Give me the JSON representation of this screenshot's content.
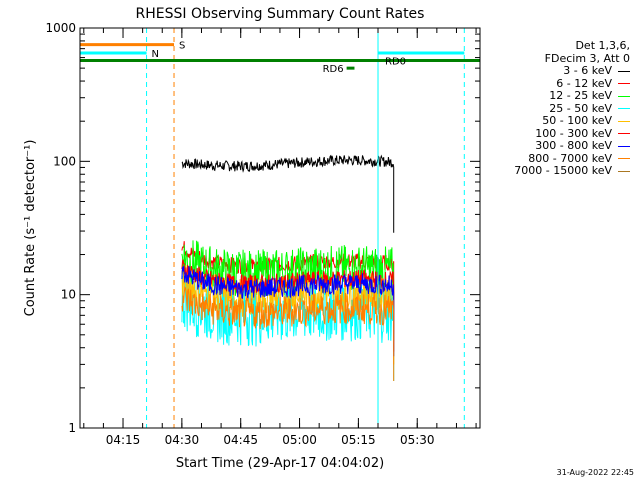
{
  "chart_data": {
    "type": "line",
    "title": "RHESSI Observing Summary Count Rates",
    "xlabel": "Start Time (29-Apr-17 04:04:02)",
    "ylabel": "Count Rate (s⁻¹ detector⁻¹)",
    "yscale": "log",
    "ylim": [
      1,
      1000
    ],
    "xlim": [
      "04:04:02",
      "05:46:00"
    ],
    "x_ticks": [
      "04:15",
      "04:30",
      "04:45",
      "05:00",
      "05:15",
      "05:30"
    ],
    "y_ticks": [
      "1",
      "10",
      "100",
      "1000"
    ],
    "legend_header": [
      "Det 1,3,6,",
      "FDecim 3, Att 0"
    ],
    "series": [
      {
        "name": "3 - 6 keV",
        "color": "#000000",
        "start": "04:30",
        "end": "05:24",
        "level": 97,
        "noise": 0.04,
        "decay": 0
      },
      {
        "name": "6 - 12 keV",
        "color": "#ff0000",
        "start": "04:30",
        "end": "05:24",
        "level": 17,
        "noise": 0.06,
        "decay": 0.35
      },
      {
        "name": "12 - 25 keV",
        "color": "#00ff00",
        "start": "04:30",
        "end": "05:24",
        "level": 15,
        "noise": 0.18,
        "decay": 0.3
      },
      {
        "name": "25 - 50 keV",
        "color": "#00ffff",
        "start": "04:30",
        "end": "05:24",
        "level": 7.5,
        "noise": 0.25,
        "decay": 0.3
      },
      {
        "name": "50 - 100 keV",
        "color": "#ffbf00",
        "start": "04:30",
        "end": "05:24",
        "level": 10,
        "noise": 0.15,
        "decay": 0.25
      },
      {
        "name": "100 - 300 keV",
        "color": "#ff0000",
        "start": "04:30",
        "end": "05:24",
        "level": 12.5,
        "noise": 0.07,
        "decay": 0.3
      },
      {
        "name": "300 - 800 keV",
        "color": "#0000ff",
        "start": "04:30",
        "end": "05:24",
        "level": 11.5,
        "noise": 0.08,
        "decay": 0.3
      },
      {
        "name": "800 - 7000 keV",
        "color": "#ff8000",
        "start": "04:30",
        "end": "05:24",
        "level": 7.5,
        "noise": 0.12,
        "decay": 0.3
      },
      {
        "name": "7000 - 15000 keV",
        "color": "#aa7722",
        "start": "04:30",
        "end": "05:24",
        "level": 0,
        "noise": 0,
        "decay": 0
      }
    ],
    "flag_bars": [
      {
        "label": "S",
        "color": "#ff8000",
        "start": "04:04:02",
        "end": "04:28",
        "y": 750
      },
      {
        "label": "N",
        "color": "#00ffff",
        "start": "04:04:02",
        "end": "04:21",
        "y": 650
      },
      {
        "label": "",
        "color": "#00ffff",
        "start": "05:20",
        "end": "05:42",
        "y": 650
      },
      {
        "label": "RD0",
        "color": "#008000",
        "start": "04:04:02",
        "end": "05:46",
        "y": 570
      },
      {
        "label": "RD6",
        "color": "#008000",
        "start": "05:12",
        "end": "05:14",
        "y": 500
      }
    ],
    "vertical_lines": [
      {
        "x": "04:04:02",
        "color": "#00ffff",
        "style": "solid"
      },
      {
        "x": "04:21",
        "color": "#00ffff",
        "style": "dashed"
      },
      {
        "x": "04:28",
        "color": "#ff8000",
        "style": "dashed"
      },
      {
        "x": "05:20",
        "color": "#00ffff",
        "style": "solid"
      },
      {
        "x": "05:42",
        "color": "#00ffff",
        "style": "dashed"
      }
    ]
  },
  "footer": "31-Aug-2022 22:45"
}
